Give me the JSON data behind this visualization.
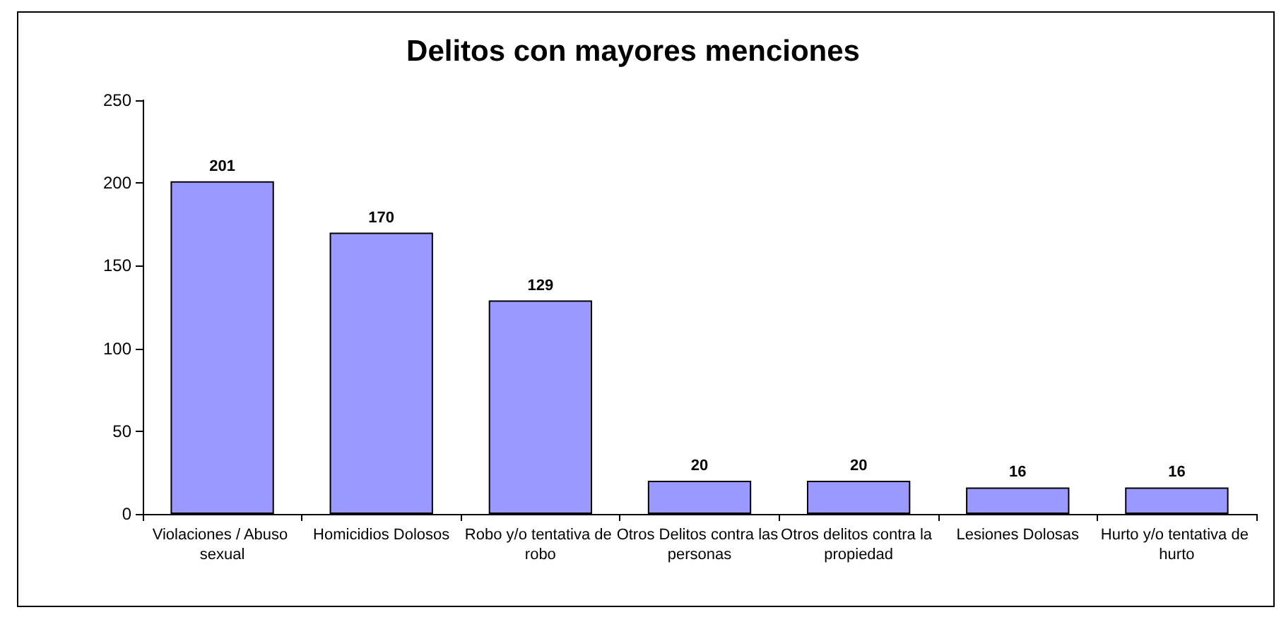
{
  "chart_data": {
    "type": "bar",
    "title": "Delitos con mayores menciones",
    "categories": [
      "Violaciones / Abuso sexual",
      "Homicidios Dolosos",
      "Robo y/o tentativa de robo",
      "Otros Delitos contra las personas",
      "Otros delitos contra la propiedad",
      "Lesiones Dolosas",
      "Hurto y/o tentativa de hurto"
    ],
    "values": [
      201,
      170,
      129,
      20,
      20,
      16,
      16
    ],
    "color": "#9999ff",
    "ylim": [
      0,
      250
    ],
    "yticks": [
      0,
      50,
      100,
      150,
      200,
      250
    ],
    "grid": false,
    "data_labels": true
  }
}
